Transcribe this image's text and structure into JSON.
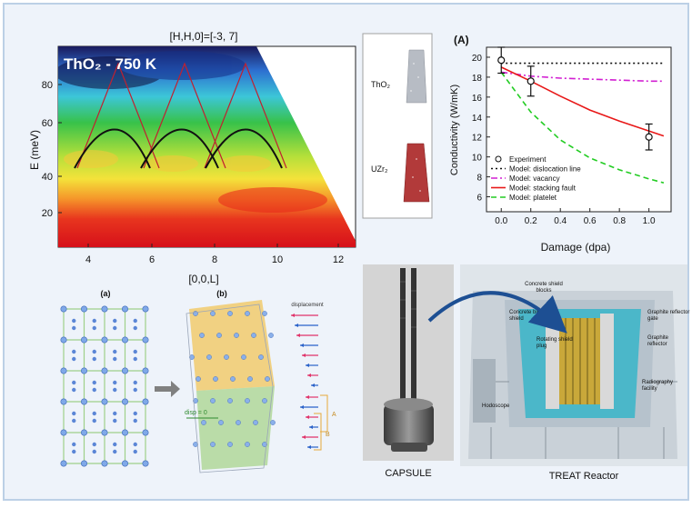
{
  "colors": {
    "panel_bg": "#eef3fa",
    "frame": "#bcd0e6"
  },
  "heatmap": {
    "title_top": "[H,H,0]=[-3, 7]",
    "overlay_label": "ThO₂ - 750 K",
    "ylabel": "E (meV)",
    "xlabel": "[0,0,L]",
    "yticks": [
      "20",
      "40",
      "60",
      "80"
    ],
    "xticks": [
      "4",
      "6",
      "8",
      "10",
      "12"
    ]
  },
  "sim": {
    "label_top": "ThO₂",
    "label_bottom": "UZr₂"
  },
  "chart_data": {
    "type": "line",
    "panel_label": "(A)",
    "xlabel": "Damage (dpa)",
    "ylabel": "Conductivity (W/mK)",
    "xlim": [
      -0.1,
      1.15
    ],
    "ylim": [
      4.5,
      21
    ],
    "xticks": [
      0.0,
      0.2,
      0.4,
      0.6,
      0.8,
      1.0
    ],
    "yticks": [
      6,
      8,
      10,
      12,
      14,
      16,
      18,
      20
    ],
    "xtick_labels": [
      "0.0",
      "0.2",
      "0.4",
      "0.6",
      "0.8",
      "1.0"
    ],
    "ytick_labels": [
      "6",
      "8",
      "10",
      "12",
      "14",
      "16",
      "18",
      "20"
    ],
    "experiment": {
      "name": "Experiment",
      "x": [
        0.0,
        0.2,
        1.0
      ],
      "y": [
        19.7,
        17.6,
        12.0
      ],
      "err": [
        1.3,
        1.5,
        1.3
      ]
    },
    "series": [
      {
        "name": "Model: dislocation line",
        "color": "#111111",
        "dash": "2,3",
        "x": [
          0.0,
          1.1
        ],
        "y": [
          19.4,
          19.4
        ]
      },
      {
        "name": "Model: vacancy",
        "color": "#d21fd2",
        "dash": "7,3,2,3",
        "x": [
          0.0,
          0.2,
          0.4,
          0.6,
          0.8,
          1.0,
          1.1
        ],
        "y": [
          18.5,
          18.1,
          17.9,
          17.8,
          17.7,
          17.6,
          17.6
        ]
      },
      {
        "name": "Model: stacking fault",
        "color": "#e81818",
        "dash": "",
        "x": [
          0.0,
          0.2,
          0.4,
          0.6,
          0.8,
          1.0,
          1.1
        ],
        "y": [
          19.0,
          17.6,
          16.1,
          14.7,
          13.6,
          12.6,
          12.1
        ]
      },
      {
        "name": "Model: platelet",
        "color": "#22cc22",
        "dash": "6,4",
        "x": [
          0.0,
          0.2,
          0.4,
          0.6,
          0.8,
          1.0,
          1.1
        ],
        "y": [
          18.5,
          14.5,
          11.7,
          9.9,
          8.7,
          7.8,
          7.4
        ]
      }
    ]
  },
  "lattice": {
    "label_a": "(a)",
    "label_b": "(b)",
    "displacement": "displacement",
    "disp_zero": "disp = 0",
    "bracket_a": "A",
    "bracket_b": "B"
  },
  "reactor": {
    "capsule_label": "CAPSULE",
    "reactor_label": "TREAT Reactor",
    "callouts": [
      "Concrete shield blocks",
      "Concrete biological shield",
      "Rotating shield plug",
      "Graphite reflector gate",
      "Graphite reflector",
      "Radiography facility",
      "Hodoscope"
    ]
  }
}
